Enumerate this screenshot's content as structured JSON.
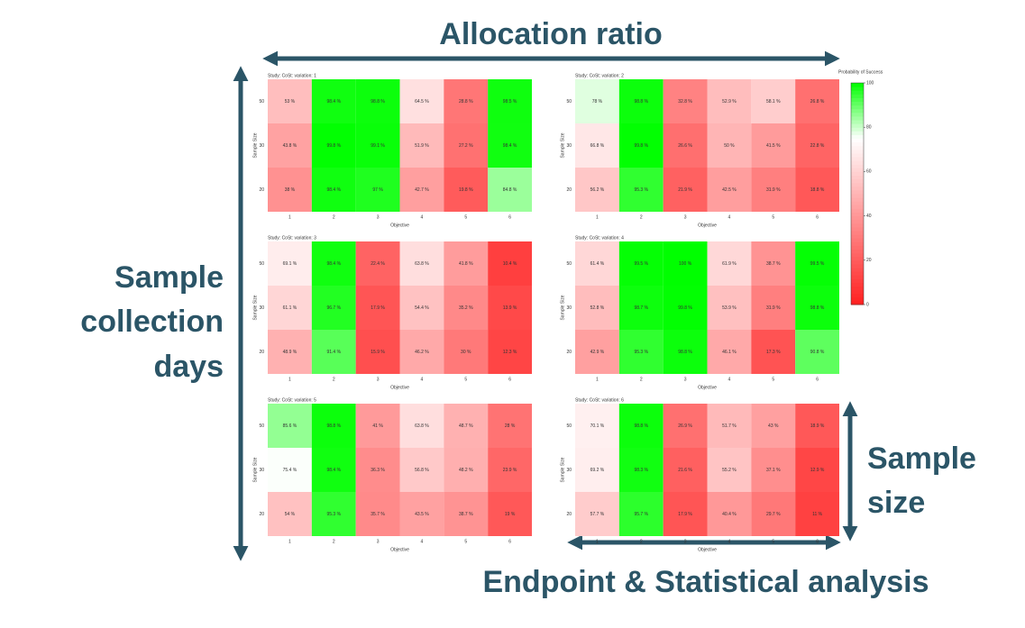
{
  "annotations": {
    "top": "Allocation ratio",
    "left": [
      "Sample",
      "collection",
      "days"
    ],
    "right": [
      "Sample",
      "size"
    ],
    "bottom": "Endpoint & Statistical analysis"
  },
  "colorbar": {
    "label": "Probability of Success",
    "lim": [
      0,
      100
    ],
    "ticks": [
      0,
      20,
      40,
      60,
      80,
      100
    ],
    "colors": [
      "#ff2020",
      "#ffffff",
      "#00ff00"
    ],
    "stops": [
      0,
      75,
      100
    ]
  },
  "chart_data": [
    {
      "type": "heatmap",
      "title": "Study: CoSt: variation: 1",
      "xlabel": "Objective",
      "ylabel": "Sample Size",
      "categories": [
        "1",
        "2",
        "3",
        "4",
        "5",
        "6"
      ],
      "rows": [
        "50",
        "30",
        "20"
      ],
      "values": [
        [
          53,
          98.4,
          98.8,
          64.5,
          28.8,
          98.5
        ],
        [
          43.8,
          99.8,
          99.1,
          51.9,
          27.2,
          98.4
        ],
        [
          38,
          98.4,
          97,
          42.7,
          19.8,
          84.8
        ]
      ],
      "value_labels": [
        [
          "53 %",
          "98.4 %",
          "98.8 %",
          "64.5 %",
          "28.8 %",
          "98.5 %"
        ],
        [
          "43.8 %",
          "99.8 %",
          "99.1 %",
          "51.9 %",
          "27.2 %",
          "98.4 %"
        ],
        [
          "38 %",
          "98.4 %",
          "97 %",
          "42.7 %",
          "19.8 %",
          "84.8 %"
        ]
      ]
    },
    {
      "type": "heatmap",
      "title": "Study: CoSt: variation: 2",
      "xlabel": "Objective",
      "ylabel": "Sample Size",
      "categories": [
        "1",
        "2",
        "3",
        "4",
        "5",
        "6"
      ],
      "rows": [
        "50",
        "30",
        "20"
      ],
      "values": [
        [
          78,
          98.8,
          32.8,
          52.9,
          58.1,
          26.8
        ],
        [
          66.8,
          99.8,
          26.6,
          50,
          41.5,
          22.8
        ],
        [
          56.2,
          95.3,
          21.9,
          42.5,
          31.9,
          18.8
        ]
      ],
      "value_labels": [
        [
          "78 %",
          "98.8 %",
          "32.8 %",
          "52.9 %",
          "58.1 %",
          "26.8 %"
        ],
        [
          "66.8 %",
          "99.8 %",
          "26.6 %",
          "50 %",
          "41.5 %",
          "22.8 %"
        ],
        [
          "56.2 %",
          "95.3 %",
          "21.9 %",
          "42.5 %",
          "31.9 %",
          "18.8 %"
        ]
      ]
    },
    {
      "type": "heatmap",
      "title": "Study: CoSt: variation: 3",
      "xlabel": "Objective",
      "ylabel": "Sample Size",
      "categories": [
        "1",
        "2",
        "3",
        "4",
        "5",
        "6"
      ],
      "rows": [
        "50",
        "30",
        "20"
      ],
      "values": [
        [
          69.1,
          98.4,
          22.4,
          63.8,
          41.8,
          10.4
        ],
        [
          61.1,
          96.7,
          17.9,
          54.4,
          35.2,
          13.9
        ],
        [
          48.9,
          91.4,
          15.9,
          46.2,
          30,
          12.3
        ]
      ],
      "value_labels": [
        [
          "69.1 %",
          "98.4 %",
          "22.4 %",
          "63.8 %",
          "41.8 %",
          "10.4 %"
        ],
        [
          "61.1 %",
          "96.7 %",
          "17.9 %",
          "54.4 %",
          "35.2 %",
          "13.9 %"
        ],
        [
          "48.9 %",
          "91.4 %",
          "15.9 %",
          "46.2 %",
          "30 %",
          "12.3 %"
        ]
      ]
    },
    {
      "type": "heatmap",
      "title": "Study: CoSt: variation: 4",
      "xlabel": "Objective",
      "ylabel": "Sample Size",
      "categories": [
        "1",
        "2",
        "3",
        "4",
        "5",
        "6"
      ],
      "rows": [
        "50",
        "30",
        "20"
      ],
      "values": [
        [
          61.4,
          99.5,
          100,
          61.9,
          38.7,
          99.5
        ],
        [
          52.8,
          98.7,
          99.8,
          53.9,
          31.9,
          98.8
        ],
        [
          42.9,
          95.3,
          98.8,
          46.1,
          17.3,
          90.8
        ]
      ],
      "value_labels": [
        [
          "61.4 %",
          "99.5 %",
          "100 %",
          "61.9 %",
          "38.7 %",
          "99.5 %"
        ],
        [
          "52.8 %",
          "98.7 %",
          "99.8 %",
          "53.9 %",
          "31.9 %",
          "98.8 %"
        ],
        [
          "42.9 %",
          "95.3 %",
          "98.8 %",
          "46.1 %",
          "17.3 %",
          "90.8 %"
        ]
      ]
    },
    {
      "type": "heatmap",
      "title": "Study: CoSt: variation: 5",
      "xlabel": "Objective",
      "ylabel": "Sample Size",
      "categories": [
        "1",
        "2",
        "3",
        "4",
        "5",
        "6"
      ],
      "rows": [
        "50",
        "30",
        "20"
      ],
      "values": [
        [
          85.6,
          98.8,
          41,
          63.8,
          48.7,
          28
        ],
        [
          75.4,
          98.4,
          36.3,
          56.8,
          48.2,
          23.9
        ],
        [
          54,
          95.3,
          35.7,
          43.5,
          38.7,
          19
        ]
      ],
      "value_labels": [
        [
          "85.6 %",
          "98.8 %",
          "41 %",
          "63.8 %",
          "48.7 %",
          "28 %"
        ],
        [
          "75.4 %",
          "98.4 %",
          "36.3 %",
          "56.8 %",
          "48.2 %",
          "23.9 %"
        ],
        [
          "54 %",
          "95.3 %",
          "35.7 %",
          "43.5 %",
          "38.7 %",
          "19 %"
        ]
      ]
    },
    {
      "type": "heatmap",
      "title": "Study: CoSt: variation: 6",
      "xlabel": "Objective",
      "ylabel": "Sample Size",
      "categories": [
        "1",
        "2",
        "3",
        "4",
        "5",
        "6"
      ],
      "rows": [
        "50",
        "30",
        "20"
      ],
      "values": [
        [
          70.1,
          98.8,
          26.9,
          51.7,
          43,
          18.9
        ],
        [
          69.2,
          98.3,
          21.6,
          55.2,
          37.1,
          12.9
        ],
        [
          57.7,
          95.7,
          17.9,
          40.4,
          29.7,
          11
        ]
      ],
      "value_labels": [
        [
          "70.1 %",
          "98.8 %",
          "26.9 %",
          "51.7 %",
          "43 %",
          "18.9 %"
        ],
        [
          "69.2 %",
          "98.3 %",
          "21.6 %",
          "55.2 %",
          "37.1 %",
          "12.9 %"
        ],
        [
          "57.7 %",
          "95.7 %",
          "17.9 %",
          "40.4 %",
          "29.7 %",
          "11 %"
        ]
      ]
    }
  ]
}
